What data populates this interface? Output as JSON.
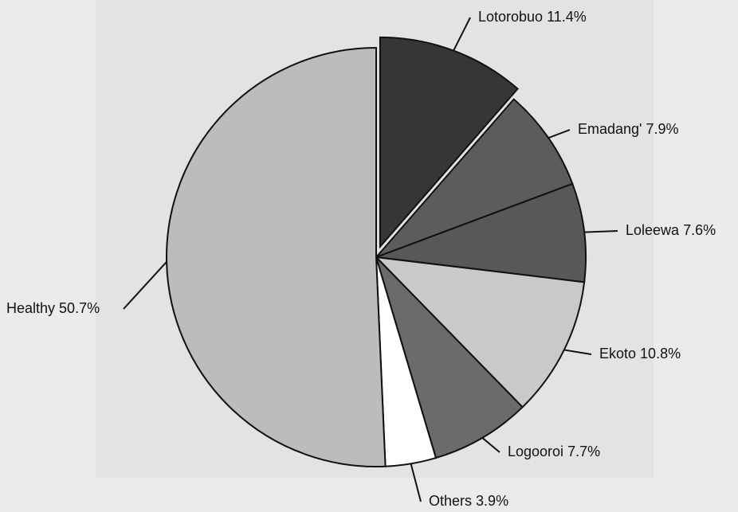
{
  "chart_data": {
    "type": "pie",
    "categories": [
      "Lotorobuo",
      "Emadang'",
      "Loleewa",
      "Ekoto",
      "Logooroi",
      "Others",
      "Healthy"
    ],
    "values": [
      11.4,
      7.9,
      7.6,
      10.8,
      7.7,
      3.9,
      50.7
    ],
    "value_labels": [
      "11.4%",
      "7.9%",
      "7.6%",
      "10.8%",
      "7.7%",
      "3.9%",
      "50.7%"
    ],
    "colors": [
      "#363636",
      "#5c5c5c",
      "#585858",
      "#c9c9c9",
      "#6b6b6b",
      "#ffffff",
      "#bcbcbc"
    ],
    "exploded": [
      "Lotorobuo"
    ]
  }
}
